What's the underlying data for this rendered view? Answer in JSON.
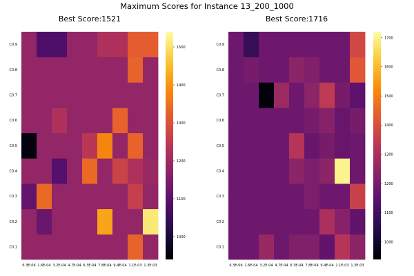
{
  "figure_title": "Maximum Scores for Instance 13_200_1000",
  "chart_data": [
    {
      "type": "heatmap",
      "title": "Best Score:1521",
      "colormap": "inferno",
      "x_ticks": [
        "6.3E-06",
        "1.6E-04",
        "3.2E-04",
        "4.7E-04",
        "6.3E-04",
        "7.8E-04",
        "9.4E-04",
        "1.1E-03",
        "1.3E-03"
      ],
      "y_ticks": [
        "C0.1",
        "C0.2",
        "C0.3",
        "C0.4",
        "C0.5",
        "C0.6",
        "C0.7",
        "C0.8",
        "C0.9"
      ],
      "clim": [
        940,
        1540
      ],
      "colorbar_ticks": [
        1000,
        1100,
        1200,
        1300,
        1400,
        1500
      ],
      "z": [
        [
          1180,
          1180,
          1180,
          1180,
          1180,
          1180,
          1180,
          1330,
          1180
        ],
        [
          1180,
          1120,
          1180,
          1180,
          1180,
          1420,
          1180,
          1180,
          1510
        ],
        [
          1110,
          1340,
          1180,
          1180,
          1180,
          1180,
          1180,
          1260,
          1180
        ],
        [
          1180,
          1180,
          1090,
          1180,
          1340,
          1180,
          1270,
          1220,
          1190
        ],
        [
          950,
          1180,
          1180,
          1180,
          1240,
          1380,
          1180,
          1330,
          1180
        ],
        [
          1180,
          1180,
          1220,
          1180,
          1180,
          1180,
          1330,
          1180,
          1180
        ],
        [
          1180,
          1180,
          1180,
          1180,
          1180,
          1180,
          1180,
          1180,
          1180
        ],
        [
          1180,
          1180,
          1180,
          1180,
          1180,
          1180,
          1180,
          1330,
          1180
        ],
        [
          1180,
          1080,
          1080,
          1180,
          1180,
          1220,
          1220,
          1320,
          1320
        ]
      ]
    },
    {
      "type": "heatmap",
      "title": "Best Score:1716",
      "colormap": "inferno",
      "x_ticks": [
        "6.3E-06",
        "1.6E-04",
        "3.2E-04",
        "4.7E-04",
        "6.3E-04",
        "7.8E-04",
        "9.4E-04",
        "1.1E-03",
        "1.3E-03"
      ],
      "y_ticks": [
        "C0.1",
        "C0.2",
        "C0.3",
        "C0.4",
        "C0.5",
        "C0.6",
        "C0.7",
        "C0.8",
        "C0.9"
      ],
      "clim": [
        940,
        1720
      ],
      "colorbar_ticks": [
        1000,
        1100,
        1200,
        1300,
        1400,
        1500,
        1600,
        1700
      ],
      "z": [
        [
          1180,
          1180,
          1260,
          1180,
          1220,
          1220,
          1160,
          1320,
          1240
        ],
        [
          1180,
          1180,
          1180,
          1180,
          1180,
          1180,
          1300,
          1230,
          1160
        ],
        [
          1180,
          1180,
          1180,
          1180,
          1180,
          1210,
          1180,
          1180,
          1360
        ],
        [
          1180,
          1180,
          1180,
          1180,
          1240,
          1210,
          1240,
          1700,
          1180
        ],
        [
          1180,
          1180,
          1180,
          1180,
          1320,
          1170,
          1200,
          1170,
          1180
        ],
        [
          1180,
          1180,
          1180,
          1180,
          1180,
          1200,
          1230,
          1170,
          1200
        ],
        [
          1180,
          1180,
          950,
          1270,
          1180,
          1240,
          1340,
          1200,
          1150
        ],
        [
          1180,
          1200,
          1180,
          1180,
          1240,
          1220,
          1180,
          1180,
          1420
        ],
        [
          1180,
          1080,
          1180,
          1180,
          1180,
          1180,
          1180,
          1180,
          1380
        ]
      ]
    }
  ]
}
